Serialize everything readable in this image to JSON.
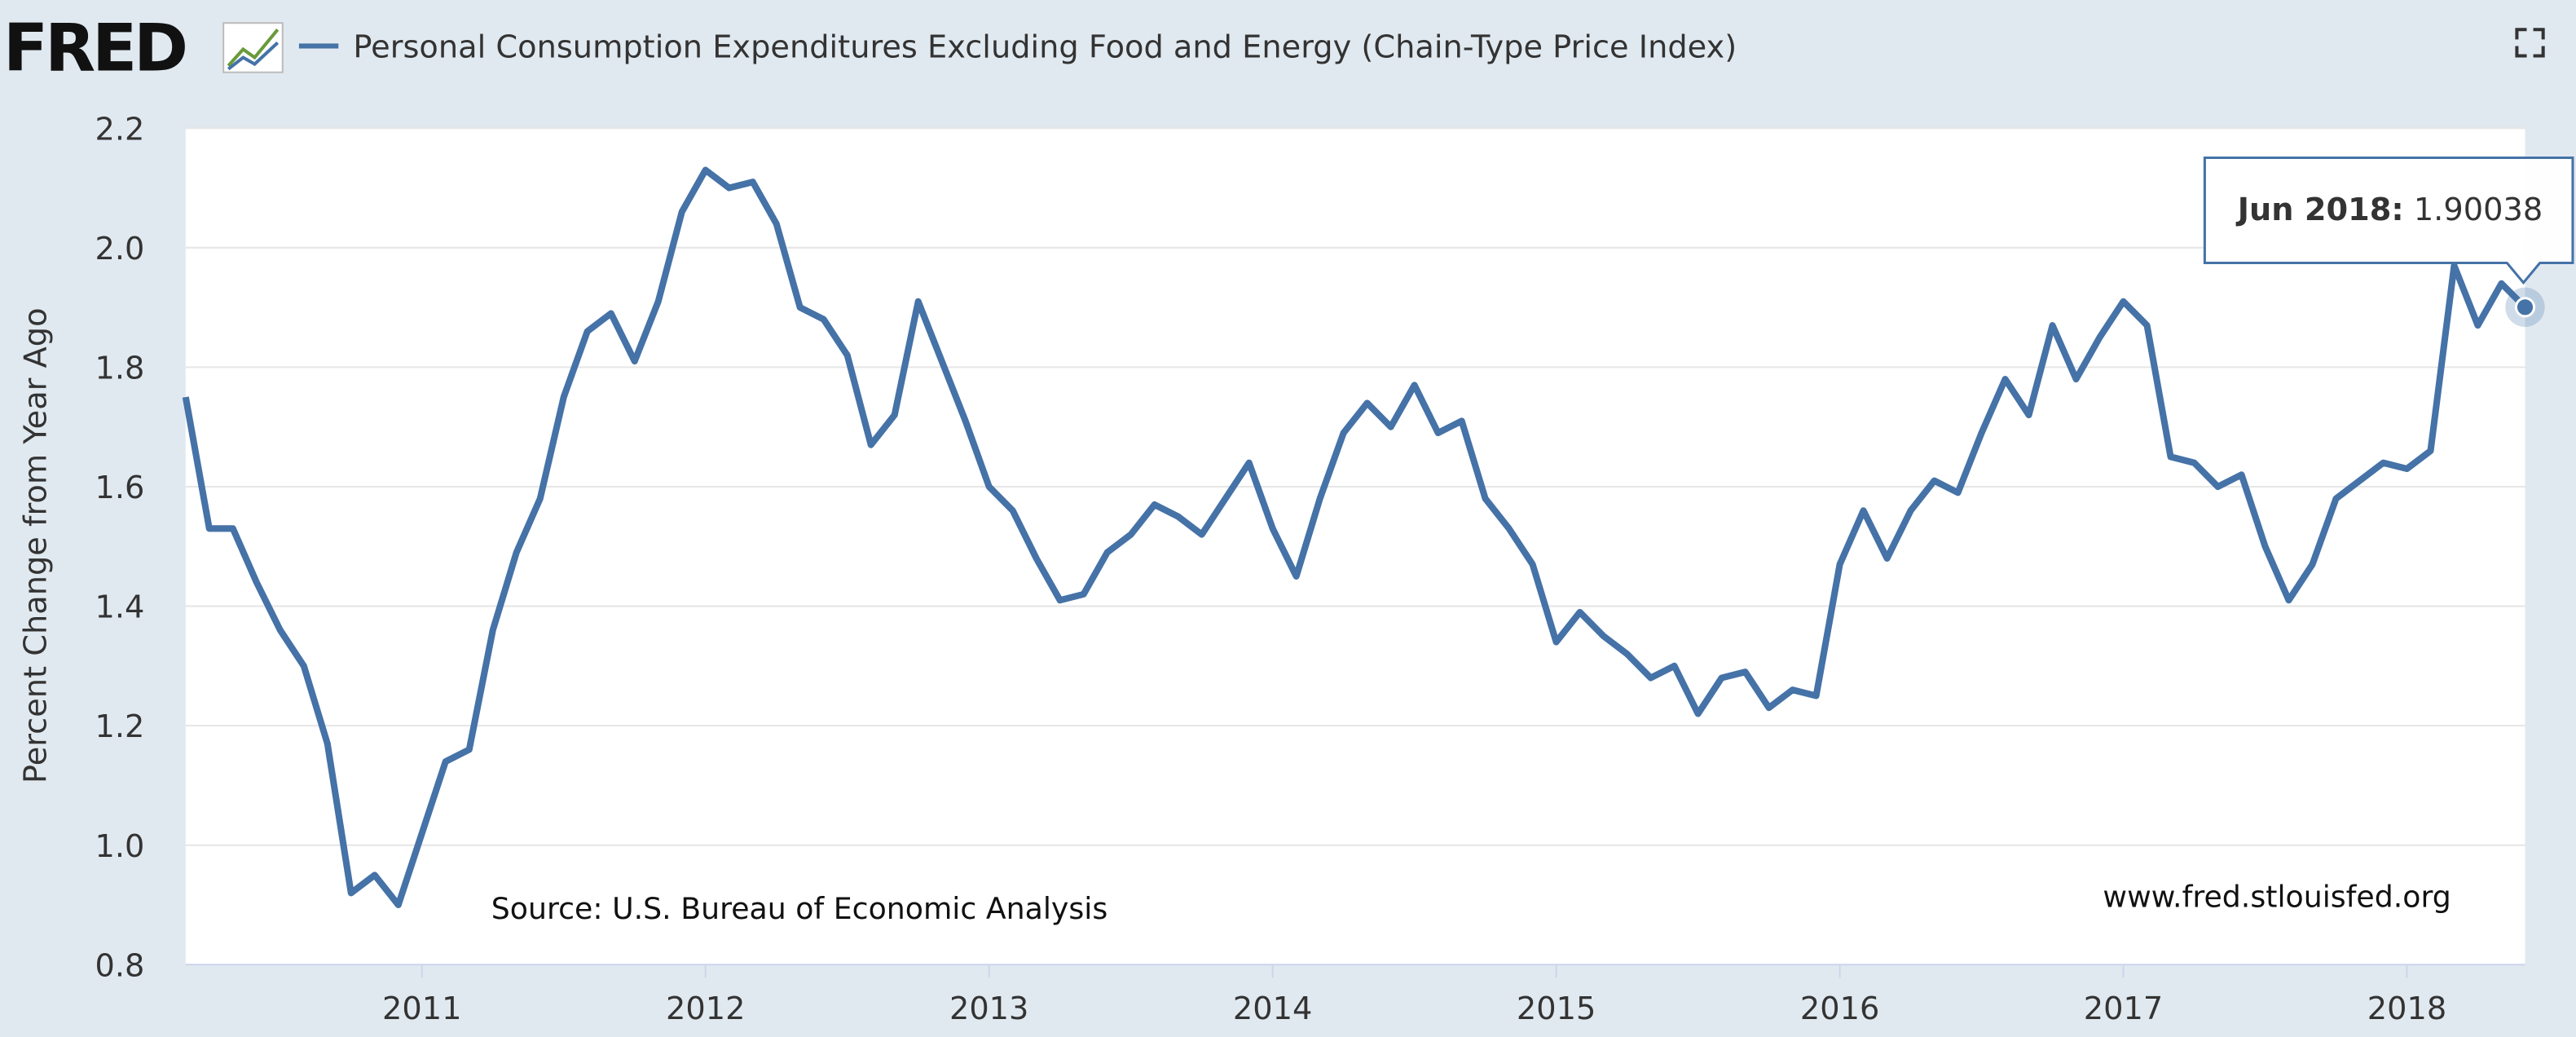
{
  "brand": "FRED",
  "chart_data": {
    "type": "line",
    "ylabel": "Percent Change from Year Ago",
    "source": "Source: U.S. Bureau of Economic Analysis",
    "watermark": "www.fred.stlouisfed.org",
    "x": [
      "2010-03",
      "2010-04",
      "2010-05",
      "2010-06",
      "2010-07",
      "2010-08",
      "2010-09",
      "2010-10",
      "2010-11",
      "2010-12",
      "2011-01",
      "2011-02",
      "2011-03",
      "2011-04",
      "2011-05",
      "2011-06",
      "2011-07",
      "2011-08",
      "2011-09",
      "2011-10",
      "2011-11",
      "2011-12",
      "2012-01",
      "2012-02",
      "2012-03",
      "2012-04",
      "2012-05",
      "2012-06",
      "2012-07",
      "2012-08",
      "2012-09",
      "2012-10",
      "2012-11",
      "2012-12",
      "2013-01",
      "2013-02",
      "2013-03",
      "2013-04",
      "2013-05",
      "2013-06",
      "2013-07",
      "2013-08",
      "2013-09",
      "2013-10",
      "2013-11",
      "2013-12",
      "2014-01",
      "2014-02",
      "2014-03",
      "2014-04",
      "2014-05",
      "2014-06",
      "2014-07",
      "2014-08",
      "2014-09",
      "2014-10",
      "2014-11",
      "2014-12",
      "2015-01",
      "2015-02",
      "2015-03",
      "2015-04",
      "2015-05",
      "2015-06",
      "2015-07",
      "2015-08",
      "2015-09",
      "2015-10",
      "2015-11",
      "2015-12",
      "2016-01",
      "2016-02",
      "2016-03",
      "2016-04",
      "2016-05",
      "2016-06",
      "2016-07",
      "2016-08",
      "2016-09",
      "2016-10",
      "2016-11",
      "2016-12",
      "2017-01",
      "2017-02",
      "2017-03",
      "2017-04",
      "2017-05",
      "2017-06",
      "2017-07",
      "2017-08",
      "2017-09",
      "2017-10",
      "2017-11",
      "2017-12",
      "2018-01",
      "2018-02",
      "2018-03",
      "2018-04",
      "2018-05",
      "2018-06"
    ],
    "series": [
      {
        "name": "Personal Consumption Expenditures Excluding Food and Energy (Chain-Type Price Index)",
        "color": "#4572a7",
        "values": [
          1.75,
          1.53,
          1.53,
          1.44,
          1.36,
          1.3,
          1.17,
          0.92,
          0.95,
          0.9,
          1.02,
          1.14,
          1.16,
          1.36,
          1.49,
          1.58,
          1.75,
          1.86,
          1.89,
          1.81,
          1.91,
          2.06,
          2.13,
          2.1,
          2.11,
          2.04,
          1.9,
          1.88,
          1.82,
          1.67,
          1.72,
          1.91,
          1.81,
          1.71,
          1.6,
          1.56,
          1.48,
          1.41,
          1.42,
          1.49,
          1.52,
          1.57,
          1.55,
          1.52,
          1.58,
          1.64,
          1.53,
          1.45,
          1.58,
          1.69,
          1.74,
          1.7,
          1.77,
          1.69,
          1.71,
          1.58,
          1.53,
          1.47,
          1.34,
          1.39,
          1.35,
          1.32,
          1.28,
          1.3,
          1.22,
          1.28,
          1.29,
          1.23,
          1.26,
          1.25,
          1.47,
          1.56,
          1.48,
          1.56,
          1.61,
          1.59,
          1.69,
          1.78,
          1.72,
          1.87,
          1.78,
          1.85,
          1.91,
          1.87,
          1.65,
          1.64,
          1.6,
          1.62,
          1.5,
          1.41,
          1.47,
          1.58,
          1.61,
          1.64,
          1.63,
          1.66,
          1.97,
          1.87,
          1.94,
          1.90038
        ]
      }
    ],
    "xlim": [
      "2010-03",
      "2018-06"
    ],
    "xticks": [
      {
        "value": "2011-01",
        "label": "2011"
      },
      {
        "value": "2012-01",
        "label": "2012"
      },
      {
        "value": "2013-01",
        "label": "2013"
      },
      {
        "value": "2014-01",
        "label": "2014"
      },
      {
        "value": "2015-01",
        "label": "2015"
      },
      {
        "value": "2016-01",
        "label": "2016"
      },
      {
        "value": "2017-01",
        "label": "2017"
      },
      {
        "value": "2018-01",
        "label": "2018"
      }
    ],
    "ylim": [
      0.8,
      2.2
    ],
    "yticks": [
      0.8,
      {
        "value": 1,
        "label": "1.0"
      },
      1.2,
      1.4,
      1.6,
      1.8,
      {
        "value": 2,
        "label": "2.0"
      },
      2.2
    ],
    "grid": true,
    "tooltip": {
      "label": "Jun 2018:",
      "value": 1.90038
    }
  }
}
